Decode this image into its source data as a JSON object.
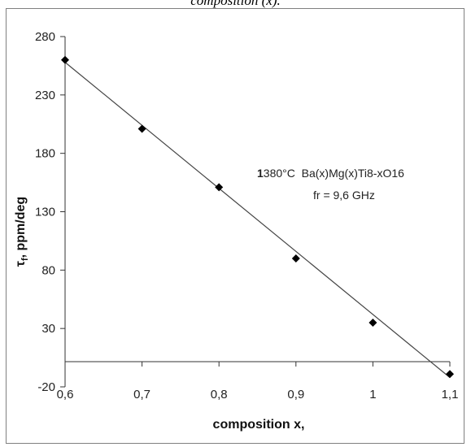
{
  "caption": "composition (x).",
  "chart_data": {
    "type": "scatter",
    "title": "",
    "xlabel": "composition x,",
    "ylabel": "τf, ppm/deg",
    "ylabel_main": "τ",
    "ylabel_sub": "f",
    "ylabel_rest": ", ppm/deg",
    "xlim": [
      0.6,
      1.1
    ],
    "ylim": [
      -20,
      280
    ],
    "x_ticks": [
      "0,6",
      "0,7",
      "0,8",
      "0,9",
      "1",
      "1,1"
    ],
    "x_tick_values": [
      0.6,
      0.7,
      0.8,
      0.9,
      1.0,
      1.1
    ],
    "y_ticks": [
      "280",
      "230",
      "180",
      "130",
      "80",
      "30",
      "-20"
    ],
    "y_tick_values": [
      280,
      230,
      180,
      130,
      80,
      30,
      -20
    ],
    "grid": false,
    "series": [
      {
        "x": [
          0.6,
          0.7,
          0.8,
          0.9,
          1.0,
          1.1
        ],
        "y": [
          260,
          201,
          151,
          90,
          35,
          -9
        ],
        "marker": "diamond",
        "color": "#000000"
      }
    ],
    "trendline": {
      "type": "linear",
      "x": [
        0.6,
        1.1
      ],
      "y": [
        258,
        -12
      ],
      "color": "#444444"
    },
    "annotation": {
      "line1_bold": "1",
      "line1_rest": "380°C  Ba(x)Mg(x)Ti8-xO16",
      "line2": "fr = 9,6 GHz"
    }
  }
}
